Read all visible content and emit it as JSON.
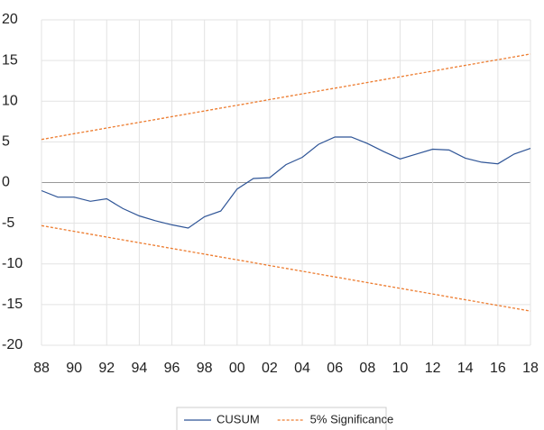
{
  "chart_data": {
    "type": "line",
    "categories": [
      "88",
      null,
      "90",
      null,
      "92",
      null,
      "94",
      null,
      "96",
      null,
      "98",
      null,
      "00",
      null,
      "02",
      null,
      "04",
      null,
      "06",
      null,
      "08",
      null,
      "10",
      null,
      "12",
      null,
      "14",
      null,
      "16",
      null,
      "18"
    ],
    "series": [
      {
        "name": "CUSUM",
        "color": "#2f5597",
        "dash": false,
        "values": [
          -1.0,
          -1.8,
          -1.8,
          -2.3,
          -2.0,
          -3.2,
          -4.1,
          -4.7,
          -5.2,
          -5.6,
          -4.2,
          -3.5,
          -0.8,
          0.5,
          0.6,
          2.2,
          3.1,
          4.7,
          5.6,
          5.6,
          4.8,
          3.8,
          2.9,
          3.5,
          4.1,
          4.0,
          3.0,
          2.5,
          2.3,
          3.5,
          4.2
        ]
      },
      {
        "name": "5% Significance",
        "color": "#ed7d31",
        "dash": true,
        "values": [
          5.3,
          5.65,
          6.0,
          6.35,
          6.7,
          7.05,
          7.4,
          7.75,
          8.1,
          8.45,
          8.8,
          9.15,
          9.5,
          9.85,
          10.2,
          10.55,
          10.9,
          11.25,
          11.6,
          11.95,
          12.3,
          12.65,
          13.0,
          13.35,
          13.7,
          14.05,
          14.4,
          14.75,
          15.1,
          15.45,
          15.8
        ]
      },
      {
        "color": "#ed7d31",
        "dash": true,
        "values": [
          -5.3,
          -5.65,
          -6.0,
          -6.35,
          -6.7,
          -7.05,
          -7.4,
          -7.75,
          -8.1,
          -8.45,
          -8.8,
          -9.15,
          -9.5,
          -9.85,
          -10.2,
          -10.55,
          -10.9,
          -11.25,
          -11.6,
          -11.95,
          -12.3,
          -12.65,
          -13.0,
          -13.35,
          -13.7,
          -14.05,
          -14.4,
          -14.75,
          -15.1,
          -15.45,
          -15.8
        ]
      }
    ],
    "ylim": [
      -20,
      20
    ],
    "yticks": [
      -20,
      -15,
      -10,
      -5,
      0,
      5,
      10,
      15,
      20
    ],
    "grid": true,
    "legend": "bottom"
  }
}
